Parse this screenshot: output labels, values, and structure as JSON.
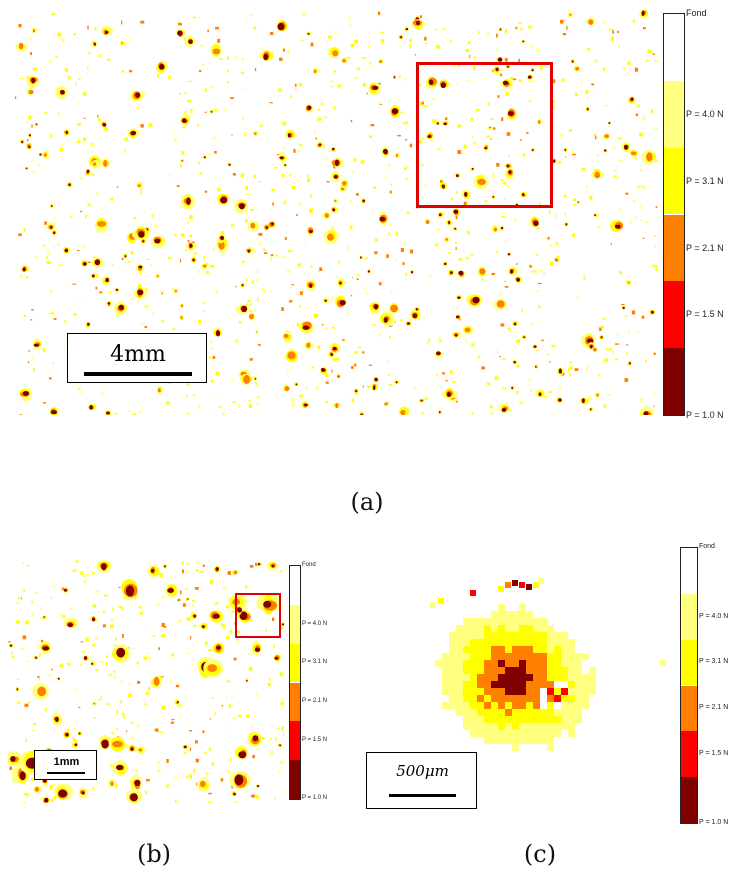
{
  "colorbar": {
    "levels": [
      {
        "label": "Fond",
        "color": "#ffffff"
      },
      {
        "label": "P = 4.0 N",
        "color": "#ffff80"
      },
      {
        "label": "P = 3.1 N",
        "color": "#ffff00"
      },
      {
        "label": "P = 2.1 N",
        "color": "#ff8000"
      },
      {
        "label": "P = 1.5 N",
        "color": "#ff0000"
      },
      {
        "label": "P = 1.0 N",
        "color": "#800000"
      }
    ]
  },
  "panel_a": {
    "caption": "(a)",
    "scale_label": "4mm"
  },
  "panel_b": {
    "caption": "(b)",
    "scale_label": "1mm"
  },
  "panel_c": {
    "caption": "(c)",
    "scale_label": "500μm"
  }
}
